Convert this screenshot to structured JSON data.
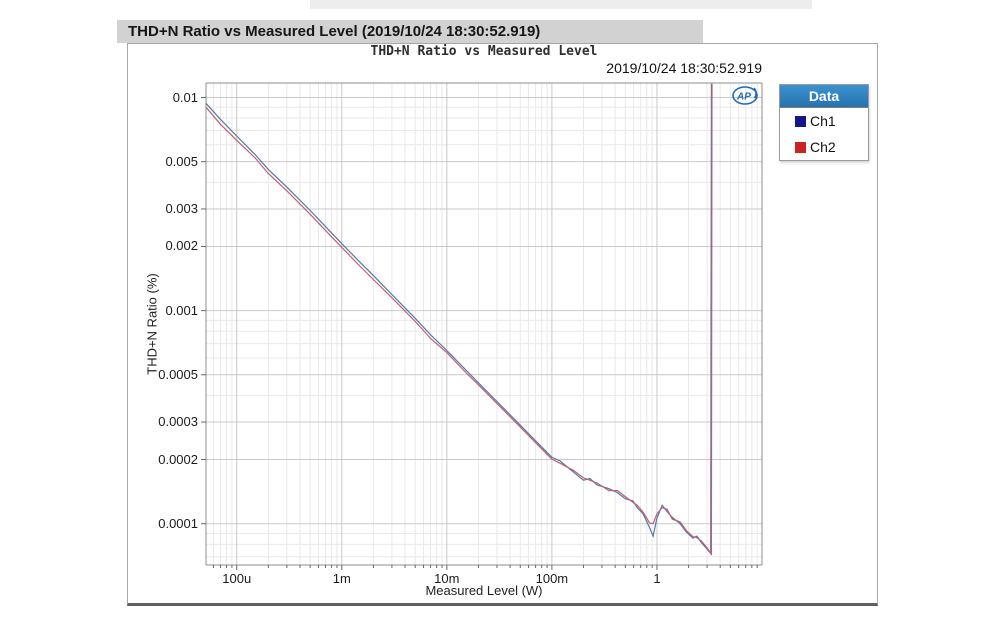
{
  "window": {
    "title": "THD+N Ratio vs Measured Level (2019/10/24 18:30:52.919)"
  },
  "logo": {
    "name": "AP",
    "color": "#1d6cb5"
  },
  "chart_data": {
    "type": "line",
    "title": "THD+N Ratio vs Measured Level",
    "timestamp": "2019/10/24 18:30:52.919",
    "xlabel": "Measured Level (W)",
    "ylabel": "THD+N Ratio (%)",
    "x_scale": "log",
    "y_scale": "log",
    "xlim": [
      5.1e-05,
      10.0
    ],
    "ylim": [
      6.4e-05,
      0.0117
    ],
    "grid": "both-major-minor",
    "x_ticks": [
      {
        "v": 0.0001,
        "label": "100u"
      },
      {
        "v": 0.001,
        "label": "1m"
      },
      {
        "v": 0.01,
        "label": "10m"
      },
      {
        "v": 0.1,
        "label": "100m"
      },
      {
        "v": 1.0,
        "label": "1"
      }
    ],
    "y_ticks": [
      {
        "v": 0.01,
        "label": "0.01"
      },
      {
        "v": 0.005,
        "label": "0.005"
      },
      {
        "v": 0.003,
        "label": "0.003"
      },
      {
        "v": 0.002,
        "label": "0.002"
      },
      {
        "v": 0.001,
        "label": "0.001"
      },
      {
        "v": 0.0005,
        "label": "0.0005"
      },
      {
        "v": 0.0003,
        "label": "0.0003"
      },
      {
        "v": 0.0002,
        "label": "0.0002"
      },
      {
        "v": 0.0001,
        "label": "0.0001"
      }
    ],
    "legend": {
      "header": "Data",
      "position": "outside-top-right",
      "entries": [
        {
          "name": "Ch1",
          "color": "#16168c"
        },
        {
          "name": "Ch2",
          "color": "#cc2222"
        }
      ]
    },
    "series": [
      {
        "name": "Ch1",
        "line_color": "#5577a5",
        "points": [
          [
            5.1e-05,
            0.0094
          ],
          [
            7e-05,
            0.0079
          ],
          [
            0.0001,
            0.0066
          ],
          [
            0.00015,
            0.0054
          ],
          [
            0.0002,
            0.0046
          ],
          [
            0.0003,
            0.0038
          ],
          [
            0.0005,
            0.00295
          ],
          [
            0.0007,
            0.00248
          ],
          [
            0.001,
            0.00206
          ],
          [
            0.0015,
            0.00168
          ],
          [
            0.002,
            0.00146
          ],
          [
            0.003,
            0.00119
          ],
          [
            0.005,
            0.00092
          ],
          [
            0.007,
            0.00077
          ],
          [
            0.01,
            0.00065
          ],
          [
            0.015,
            0.00053
          ],
          [
            0.02,
            0.000458
          ],
          [
            0.03,
            0.000374
          ],
          [
            0.05,
            0.00029
          ],
          [
            0.07,
            0.000245
          ],
          [
            0.1,
            0.000205
          ],
          [
            0.12,
            0.000197
          ],
          [
            0.16,
            0.000175
          ],
          [
            0.2,
            0.00016
          ],
          [
            0.23,
            0.000163
          ],
          [
            0.27,
            0.000152
          ],
          [
            0.35,
            0.000146
          ],
          [
            0.42,
            0.00014
          ],
          [
            0.5,
            0.000131
          ],
          [
            0.59,
            0.000128
          ],
          [
            0.65,
            0.000119
          ],
          [
            0.74,
            0.000111
          ],
          [
            0.85,
            9.6e-05
          ],
          [
            0.92,
            8.75e-05
          ],
          [
            1.0,
            0.000106
          ],
          [
            1.12,
            0.000122
          ],
          [
            1.25,
            0.000114
          ],
          [
            1.4,
            0.000107
          ],
          [
            1.66,
            0.0001
          ],
          [
            1.9,
            9.15e-05
          ],
          [
            2.2,
            8.55e-05
          ],
          [
            2.4,
            8.75e-05
          ],
          [
            2.65,
            8.15e-05
          ],
          [
            3.0,
            7.6e-05
          ],
          [
            3.25,
            7.25e-05
          ],
          [
            3.3,
            0.0116
          ]
        ]
      },
      {
        "name": "Ch2",
        "line_color": "#bb6070",
        "points": [
          [
            5.1e-05,
            0.009
          ],
          [
            7e-05,
            0.0075
          ],
          [
            0.0001,
            0.0063
          ],
          [
            0.00015,
            0.0052
          ],
          [
            0.0002,
            0.0044
          ],
          [
            0.0003,
            0.00365
          ],
          [
            0.0005,
            0.00283
          ],
          [
            0.0007,
            0.00238
          ],
          [
            0.001,
            0.00198
          ],
          [
            0.0015,
            0.00161
          ],
          [
            0.002,
            0.0014
          ],
          [
            0.003,
            0.00115
          ],
          [
            0.005,
            0.00089
          ],
          [
            0.007,
            0.00074
          ],
          [
            0.01,
            0.000635
          ],
          [
            0.015,
            0.000515
          ],
          [
            0.02,
            0.000448
          ],
          [
            0.03,
            0.000366
          ],
          [
            0.05,
            0.000284
          ],
          [
            0.07,
            0.00024
          ],
          [
            0.1,
            0.000201
          ],
          [
            0.12,
            0.000192
          ],
          [
            0.16,
            0.000178
          ],
          [
            0.2,
            0.000164
          ],
          [
            0.23,
            0.00016
          ],
          [
            0.27,
            0.000155
          ],
          [
            0.35,
            0.000143
          ],
          [
            0.42,
            0.000143
          ],
          [
            0.5,
            0.000134
          ],
          [
            0.59,
            0.000126
          ],
          [
            0.65,
            0.000122
          ],
          [
            0.74,
            0.000113
          ],
          [
            0.85,
            0.000101
          ],
          [
            0.92,
            0.0001
          ],
          [
            1.0,
            0.000111
          ],
          [
            1.12,
            0.000119
          ],
          [
            1.25,
            0.000117
          ],
          [
            1.4,
            0.000105
          ],
          [
            1.66,
            0.000102
          ],
          [
            1.9,
            9.3e-05
          ],
          [
            2.2,
            8.7e-05
          ],
          [
            2.4,
            8.6e-05
          ],
          [
            2.65,
            8.3e-05
          ],
          [
            3.0,
            7.7e-05
          ],
          [
            3.3,
            7.2e-05
          ],
          [
            3.34,
            0.0116
          ]
        ]
      }
    ],
    "colors": {
      "grid_major": "#c9c9c9",
      "grid_minor": "#e9e9e9",
      "plot_border": "#8c8c8c",
      "tick": "#666666"
    }
  }
}
